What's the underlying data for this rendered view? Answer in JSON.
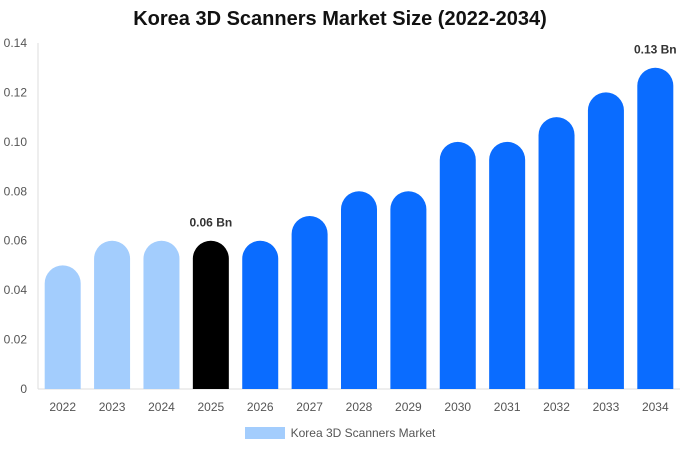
{
  "chart_data": {
    "type": "bar",
    "title": "Korea 3D Scanners Market Size (2022-2034)",
    "xlabel": "",
    "ylabel": "",
    "categories": [
      "2022",
      "2023",
      "2024",
      "2025",
      "2026",
      "2027",
      "2028",
      "2029",
      "2030",
      "2031",
      "2032",
      "2033",
      "2034"
    ],
    "series": [
      {
        "name": "Korea 3D Scanners Market",
        "values": [
          0.05,
          0.06,
          0.06,
          0.06,
          0.06,
          0.07,
          0.08,
          0.08,
          0.1,
          0.1,
          0.11,
          0.12,
          0.13
        ]
      }
    ],
    "ylim": [
      0,
      0.14
    ],
    "yticks": [
      "0",
      "0.02",
      "0.04",
      "0.06",
      "0.08",
      "0.10",
      "0.12",
      "0.14"
    ],
    "ytick_values": [
      0,
      0.02,
      0.04,
      0.06,
      0.08,
      0.1,
      0.12,
      0.14
    ],
    "data_labels": [
      {
        "category": "2025",
        "text": "0.06 Bn"
      },
      {
        "category": "2034",
        "text": "0.13 Bn"
      }
    ],
    "bar_colors": {
      "historical": "#a3cdfd",
      "current": "#000000",
      "forecast": "#0a6cff"
    },
    "current_year": "2025",
    "grid": false,
    "legend_position": "bottom-center"
  }
}
